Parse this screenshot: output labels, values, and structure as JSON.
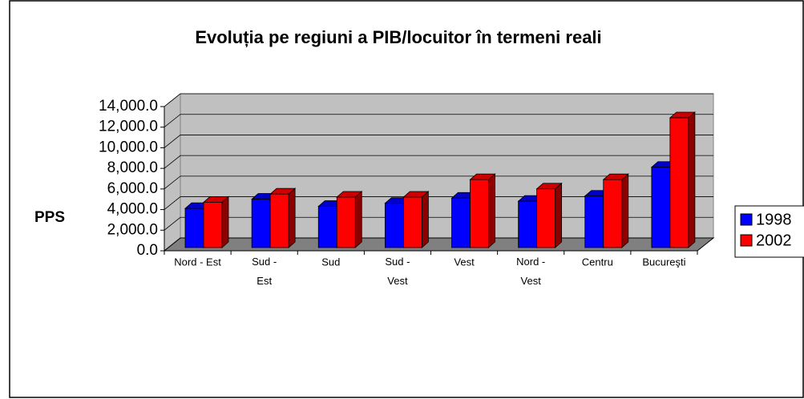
{
  "chart_data": {
    "type": "bar3d",
    "title": "Evoluția pe regiuni a PIB/locuitor în termeni reali",
    "y_label": "PPS",
    "categories": [
      "Nord - Est",
      "Sud - Est",
      "Sud",
      "Sud - Vest",
      "Vest",
      "Nord - Vest",
      "Centru",
      "Bucureşti"
    ],
    "series": [
      {
        "name": "1998",
        "color": "#0000ff",
        "values": [
          3800,
          4700,
          4000,
          4300,
          4800,
          4500,
          5000,
          7800
        ]
      },
      {
        "name": "2002",
        "color": "#ff0000",
        "values": [
          4400,
          5200,
          4900,
          4900,
          6600,
          5700,
          6600,
          12600
        ]
      }
    ],
    "ylim": [
      0,
      14000
    ],
    "yticks": [
      {
        "value": 0,
        "label": "0.0"
      },
      {
        "value": 2000,
        "label": "2,000.0"
      },
      {
        "value": 4000,
        "label": "4,000.0"
      },
      {
        "value": 6000,
        "label": "6,000.0"
      },
      {
        "value": 8000,
        "label": "8,000.0"
      },
      {
        "value": 10000,
        "label": "10,000.0"
      },
      {
        "value": 12000,
        "label": "12,000.0"
      },
      {
        "value": 14000,
        "label": "14,000.0"
      }
    ],
    "grid": true,
    "legend": "right"
  }
}
